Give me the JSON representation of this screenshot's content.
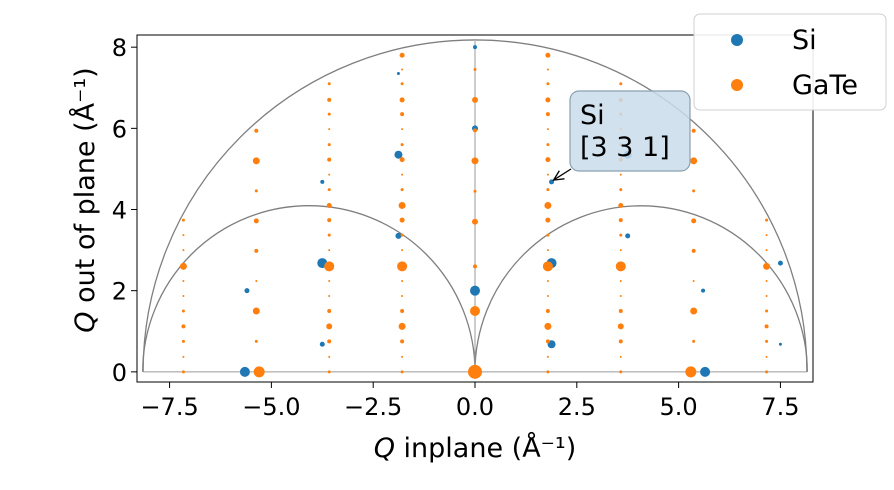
{
  "chart_data": {
    "type": "scatter",
    "title": "",
    "xlabel": "inplane",
    "ylabel": "out of plane",
    "axis_symbol": "Q",
    "axis_unit": "(Å⁻¹)",
    "xlim": [
      -8.3,
      8.3
    ],
    "ylim": [
      -0.25,
      8.3
    ],
    "x_ticks": [
      -7.5,
      -5.0,
      -2.5,
      0.0,
      2.5,
      5.0,
      7.5
    ],
    "x_tick_labels": [
      "−7.5",
      "−5.0",
      "−2.5",
      "0.0",
      "2.5",
      "5.0",
      "7.5"
    ],
    "y_ticks": [
      0,
      2,
      4,
      6,
      8
    ],
    "y_tick_labels": [
      "0",
      "2",
      "4",
      "6",
      "8"
    ],
    "grid": false,
    "legend_position": "top-right",
    "guide_curves": [
      {
        "type": "semicircle",
        "center": [
          0,
          0
        ],
        "radius": 8.15
      },
      {
        "type": "semicircle",
        "center": [
          -4.08,
          0
        ],
        "radius": 4.08
      },
      {
        "type": "semicircle",
        "center": [
          4.08,
          0
        ],
        "radius": 4.08
      }
    ],
    "reference_lines": [
      {
        "orientation": "horizontal",
        "y": 0
      },
      {
        "orientation": "vertical",
        "x": 0
      }
    ],
    "annotation": {
      "lines": [
        "Si",
        "[3 3 1]"
      ],
      "target": [
        1.88,
        4.7
      ]
    },
    "series": [
      {
        "name": "Si",
        "color": "#1f77b4",
        "points": [
          [
            0.0,
            8.0,
            2
          ],
          [
            0.0,
            6.0,
            3
          ],
          [
            0.0,
            2.0,
            5
          ],
          [
            -5.65,
            0.0,
            5
          ],
          [
            5.65,
            0.0,
            5
          ],
          [
            -1.88,
            7.35,
            1.5
          ],
          [
            -1.88,
            5.35,
            4
          ],
          [
            -3.75,
            4.68,
            2
          ],
          [
            -1.88,
            3.35,
            3
          ],
          [
            -3.75,
            2.68,
            5
          ],
          [
            -5.6,
            2.0,
            2.5
          ],
          [
            -3.75,
            0.68,
            2.5
          ],
          [
            1.88,
            4.68,
            2.5
          ],
          [
            1.88,
            2.68,
            5
          ],
          [
            1.88,
            0.68,
            4
          ],
          [
            3.75,
            5.35,
            4
          ],
          [
            3.75,
            3.35,
            2.5
          ],
          [
            5.6,
            2.0,
            2
          ],
          [
            7.5,
            2.68,
            2.5
          ],
          [
            7.5,
            0.68,
            1.5
          ]
        ]
      },
      {
        "name": "GaTe",
        "color": "#ff7f0e",
        "points": [
          [
            0.0,
            0.0,
            7
          ],
          [
            0.0,
            1.5,
            5
          ],
          [
            0.0,
            2.6,
            2
          ],
          [
            0.0,
            3.7,
            3
          ],
          [
            0.0,
            4.45,
            1.5
          ],
          [
            0.0,
            5.2,
            3.5
          ],
          [
            0.0,
            5.95,
            2
          ],
          [
            0.0,
            6.7,
            3
          ],
          [
            0.0,
            7.45,
            1.5
          ],
          [
            -5.3,
            0.0,
            5.5
          ],
          [
            5.3,
            0.0,
            5.5
          ],
          [
            -1.79,
            0.0,
            1.5
          ],
          [
            -1.79,
            0.37,
            1
          ],
          [
            -1.79,
            0.75,
            2
          ],
          [
            -1.79,
            1.12,
            3.5
          ],
          [
            -1.79,
            1.5,
            2
          ],
          [
            -1.79,
            1.87,
            1
          ],
          [
            -1.79,
            2.24,
            1
          ],
          [
            -1.79,
            2.6,
            5
          ],
          [
            -1.79,
            3.0,
            1
          ],
          [
            -1.79,
            3.37,
            1.5
          ],
          [
            -1.79,
            3.74,
            2.5
          ],
          [
            -1.79,
            4.1,
            3.5
          ],
          [
            -1.79,
            4.49,
            1.5
          ],
          [
            -1.79,
            4.86,
            1
          ],
          [
            -1.79,
            5.23,
            2.5
          ],
          [
            -1.79,
            5.6,
            1.5
          ],
          [
            -1.79,
            5.98,
            1
          ],
          [
            -1.79,
            6.35,
            2
          ],
          [
            -1.79,
            6.7,
            2.5
          ],
          [
            -1.79,
            7.1,
            1.5
          ],
          [
            -1.79,
            7.45,
            1
          ],
          [
            -1.79,
            7.8,
            2.5
          ],
          [
            1.79,
            0.0,
            1.5
          ],
          [
            1.79,
            0.37,
            1
          ],
          [
            1.79,
            0.75,
            2
          ],
          [
            1.79,
            1.12,
            3.5
          ],
          [
            1.79,
            1.5,
            2
          ],
          [
            1.79,
            1.87,
            1
          ],
          [
            1.79,
            2.24,
            1
          ],
          [
            1.79,
            2.6,
            5
          ],
          [
            1.79,
            3.0,
            1
          ],
          [
            1.79,
            3.37,
            1.5
          ],
          [
            1.79,
            3.74,
            2.5
          ],
          [
            1.79,
            4.1,
            3.5
          ],
          [
            1.79,
            4.49,
            1.5
          ],
          [
            1.79,
            4.86,
            1
          ],
          [
            1.79,
            5.23,
            2.5
          ],
          [
            1.79,
            5.6,
            1.5
          ],
          [
            1.79,
            5.98,
            1
          ],
          [
            1.79,
            6.35,
            2
          ],
          [
            1.79,
            6.7,
            2.5
          ],
          [
            1.79,
            7.1,
            1.5
          ],
          [
            1.79,
            7.45,
            1
          ],
          [
            1.79,
            7.8,
            2.5
          ],
          [
            -3.58,
            0.0,
            1.5
          ],
          [
            -3.58,
            0.37,
            1
          ],
          [
            -3.58,
            0.75,
            2
          ],
          [
            -3.58,
            1.12,
            3
          ],
          [
            -3.58,
            1.5,
            2
          ],
          [
            -3.58,
            1.87,
            1
          ],
          [
            -3.58,
            2.24,
            1
          ],
          [
            -3.58,
            2.6,
            5
          ],
          [
            -3.58,
            3.0,
            1
          ],
          [
            -3.58,
            3.37,
            1.5
          ],
          [
            -3.58,
            3.74,
            2
          ],
          [
            -3.58,
            4.1,
            2.5
          ],
          [
            -3.58,
            4.49,
            1.5
          ],
          [
            -3.58,
            4.86,
            1
          ],
          [
            -3.58,
            5.23,
            2
          ],
          [
            -3.58,
            5.6,
            1.5
          ],
          [
            -3.58,
            5.98,
            1
          ],
          [
            -3.58,
            6.35,
            1.5
          ],
          [
            -3.58,
            6.7,
            2
          ],
          [
            -3.58,
            7.1,
            1.5
          ],
          [
            3.58,
            0.0,
            1.5
          ],
          [
            3.58,
            0.37,
            1
          ],
          [
            3.58,
            0.75,
            2
          ],
          [
            3.58,
            1.12,
            3
          ],
          [
            3.58,
            1.5,
            2
          ],
          [
            3.58,
            1.87,
            1
          ],
          [
            3.58,
            2.24,
            1
          ],
          [
            3.58,
            2.6,
            5
          ],
          [
            3.58,
            3.0,
            1
          ],
          [
            3.58,
            3.37,
            1.5
          ],
          [
            3.58,
            3.74,
            2
          ],
          [
            3.58,
            4.1,
            2.5
          ],
          [
            3.58,
            4.49,
            1.5
          ],
          [
            3.58,
            4.86,
            1
          ],
          [
            3.58,
            5.23,
            2
          ],
          [
            3.58,
            5.6,
            1.5
          ],
          [
            3.58,
            5.98,
            1
          ],
          [
            3.58,
            6.35,
            1.5
          ],
          [
            3.58,
            6.7,
            2
          ],
          [
            3.58,
            7.1,
            1.5
          ],
          [
            -5.37,
            0.75,
            1.5
          ],
          [
            -5.37,
            1.5,
            3.5
          ],
          [
            -5.37,
            2.24,
            1
          ],
          [
            -5.37,
            2.98,
            2
          ],
          [
            -5.37,
            3.72,
            2.5
          ],
          [
            -5.37,
            4.46,
            1.5
          ],
          [
            -5.37,
            5.2,
            3.5
          ],
          [
            -5.37,
            5.94,
            2
          ],
          [
            5.37,
            0.75,
            1.5
          ],
          [
            5.37,
            1.5,
            3.5
          ],
          [
            5.37,
            2.24,
            1
          ],
          [
            5.37,
            2.98,
            2
          ],
          [
            5.37,
            3.72,
            2.5
          ],
          [
            5.37,
            4.46,
            1.5
          ],
          [
            5.37,
            5.2,
            3.5
          ],
          [
            5.37,
            5.94,
            2
          ],
          [
            -7.16,
            0.0,
            1.5
          ],
          [
            -7.16,
            0.37,
            1
          ],
          [
            -7.16,
            0.75,
            1.5
          ],
          [
            -7.16,
            1.12,
            2
          ],
          [
            -7.16,
            1.5,
            1.5
          ],
          [
            -7.16,
            1.87,
            1
          ],
          [
            -7.16,
            2.24,
            1
          ],
          [
            -7.16,
            2.6,
            3.5
          ],
          [
            -7.16,
            3.0,
            1
          ],
          [
            -7.16,
            3.37,
            1
          ],
          [
            -7.16,
            3.74,
            1.5
          ],
          [
            7.16,
            0.0,
            1.5
          ],
          [
            7.16,
            0.37,
            1
          ],
          [
            7.16,
            0.75,
            1.5
          ],
          [
            7.16,
            1.12,
            2
          ],
          [
            7.16,
            1.5,
            1.5
          ],
          [
            7.16,
            1.87,
            1
          ],
          [
            7.16,
            2.24,
            1
          ],
          [
            7.16,
            2.6,
            3.5
          ],
          [
            7.16,
            3.0,
            1
          ],
          [
            7.16,
            3.37,
            1
          ],
          [
            7.16,
            3.74,
            1.5
          ]
        ]
      }
    ]
  }
}
